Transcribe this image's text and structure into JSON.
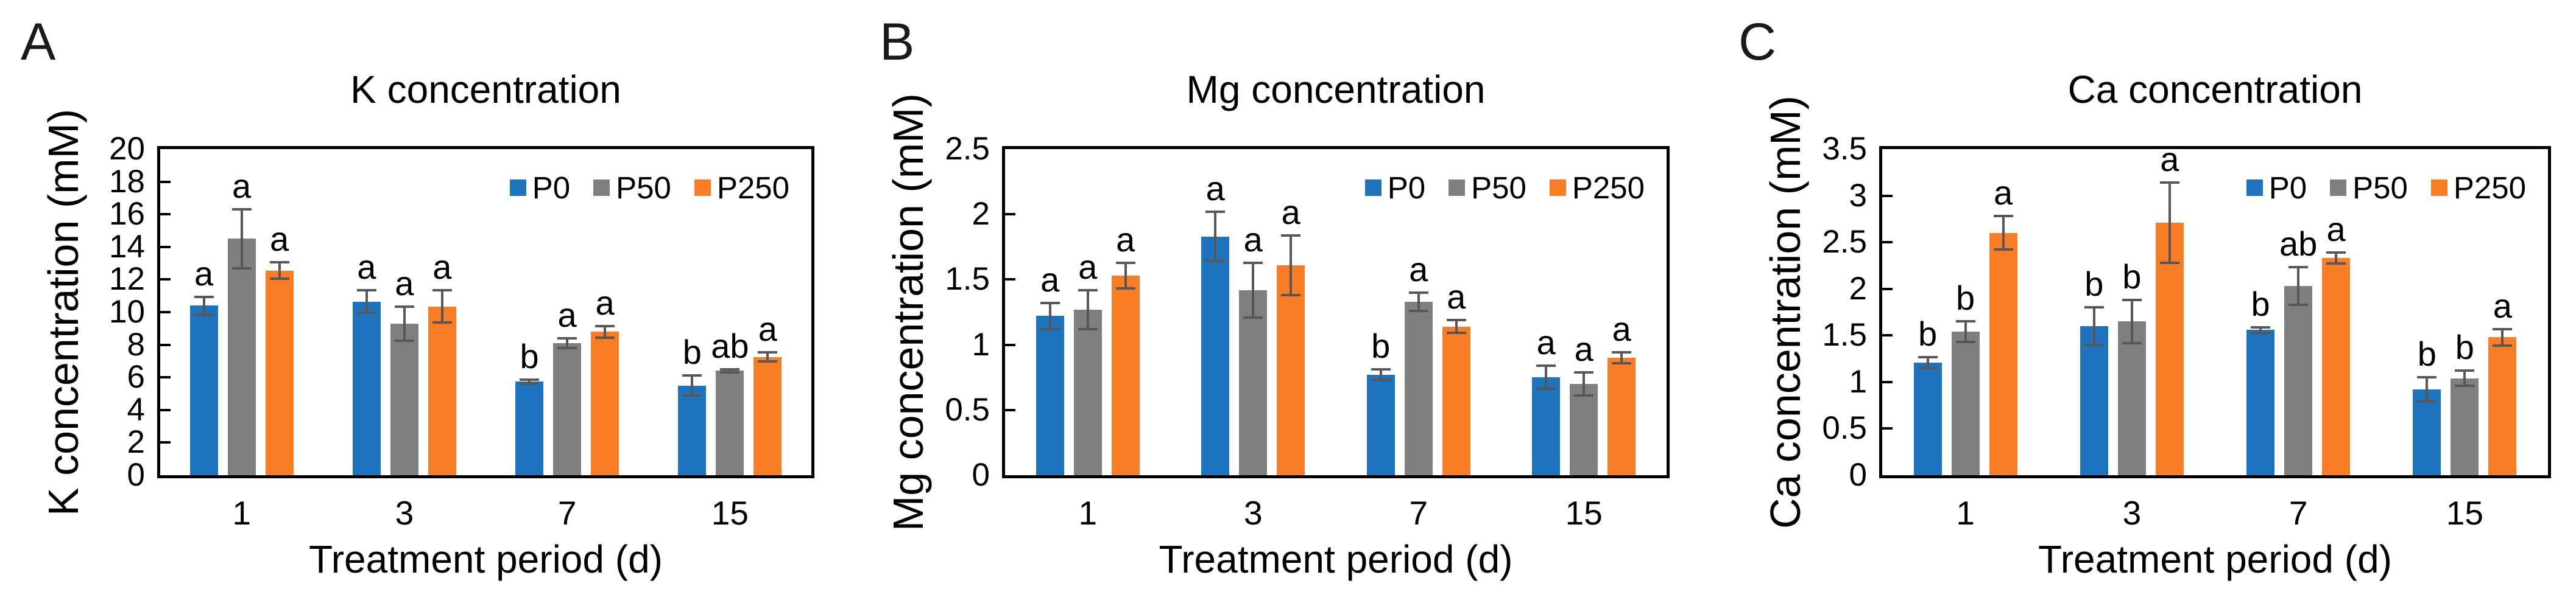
{
  "figure_title": "",
  "style": {
    "bar_colors": {
      "P0": "#1E73BE",
      "P50": "#7F7F7F",
      "P250": "#F97D26"
    },
    "error_bar_color": "#575757",
    "axis_color": "#000000",
    "background": "#ffffff"
  },
  "chart_data": [
    {
      "type": "bar",
      "panel_label": "A",
      "title": "K concentration",
      "xlabel": "Treatment period (d)",
      "ylabel": "K concentration (mM)",
      "categories": [
        "1",
        "3",
        "7",
        "15"
      ],
      "ylim": [
        0,
        20
      ],
      "yticks": [
        "0",
        "2",
        "4",
        "6",
        "8",
        "10",
        "12",
        "14",
        "16",
        "18",
        "20"
      ],
      "grid": false,
      "legend_position": "top-right-inside",
      "series": [
        {
          "name": "P0",
          "color": "#1E73BE",
          "values": [
            10.4,
            10.65,
            5.75,
            5.5
          ],
          "errors": [
            0.55,
            0.7,
            0.12,
            0.62
          ],
          "letters": [
            "a",
            "a",
            "b",
            "b"
          ]
        },
        {
          "name": "P50",
          "color": "#7F7F7F",
          "values": [
            14.5,
            9.3,
            8.1,
            6.4
          ],
          "errors": [
            1.8,
            1.05,
            0.3,
            0.1
          ],
          "letters": [
            "a",
            "a",
            "a",
            "ab"
          ]
        },
        {
          "name": "P250",
          "color": "#F97D26",
          "values": [
            12.55,
            10.35,
            8.8,
            7.25
          ],
          "errors": [
            0.5,
            1.0,
            0.35,
            0.27
          ],
          "letters": [
            "a",
            "a",
            "a",
            "a"
          ]
        }
      ]
    },
    {
      "type": "bar",
      "panel_label": "B",
      "title": "Mg concentration",
      "xlabel": "Treatment period (d)",
      "ylabel": "Mg concentration (mM)",
      "categories": [
        "1",
        "3",
        "7",
        "15"
      ],
      "ylim": [
        0,
        2.5
      ],
      "yticks": [
        "0",
        "0.5",
        "1",
        "1.5",
        "2",
        "2.5"
      ],
      "grid": false,
      "legend_position": "top-right-inside",
      "series": [
        {
          "name": "P0",
          "color": "#1E73BE",
          "values": [
            1.22,
            1.83,
            0.77,
            0.75
          ],
          "errors": [
            0.1,
            0.19,
            0.04,
            0.09
          ],
          "letters": [
            "a",
            "a",
            "b",
            "a"
          ]
        },
        {
          "name": "P50",
          "color": "#7F7F7F",
          "values": [
            1.27,
            1.42,
            1.33,
            0.7
          ],
          "errors": [
            0.15,
            0.21,
            0.07,
            0.09
          ],
          "letters": [
            "a",
            "a",
            "a",
            "a"
          ]
        },
        {
          "name": "P250",
          "color": "#F97D26",
          "values": [
            1.53,
            1.61,
            1.14,
            0.9
          ],
          "errors": [
            0.1,
            0.23,
            0.05,
            0.04
          ],
          "letters": [
            "a",
            "a",
            "a",
            "a"
          ]
        }
      ]
    },
    {
      "type": "bar",
      "panel_label": "C",
      "title": "Ca concentration",
      "xlabel": "Treatment period (d)",
      "ylabel": "Ca concentration (mM)",
      "categories": [
        "1",
        "3",
        "7",
        "15"
      ],
      "ylim": [
        0,
        3.5
      ],
      "yticks": [
        "0",
        "0.5",
        "1",
        "1.5",
        "2",
        "2.5",
        "3",
        "3.5"
      ],
      "grid": false,
      "legend_position": "top-right-inside",
      "series": [
        {
          "name": "P0",
          "color": "#1E73BE",
          "values": [
            1.21,
            1.6,
            1.56,
            0.92
          ],
          "errors": [
            0.06,
            0.2,
            0.03,
            0.13
          ],
          "letters": [
            "b",
            "b",
            "b",
            "b"
          ]
        },
        {
          "name": "P50",
          "color": "#7F7F7F",
          "values": [
            1.54,
            1.65,
            2.03,
            1.04
          ],
          "errors": [
            0.11,
            0.23,
            0.2,
            0.08
          ],
          "letters": [
            "b",
            "b",
            "ab",
            "b"
          ]
        },
        {
          "name": "P250",
          "color": "#F97D26",
          "values": [
            2.6,
            2.71,
            2.33,
            1.48
          ],
          "errors": [
            0.18,
            0.43,
            0.06,
            0.09
          ],
          "letters": [
            "a",
            "a",
            "a",
            "a"
          ]
        }
      ]
    }
  ]
}
